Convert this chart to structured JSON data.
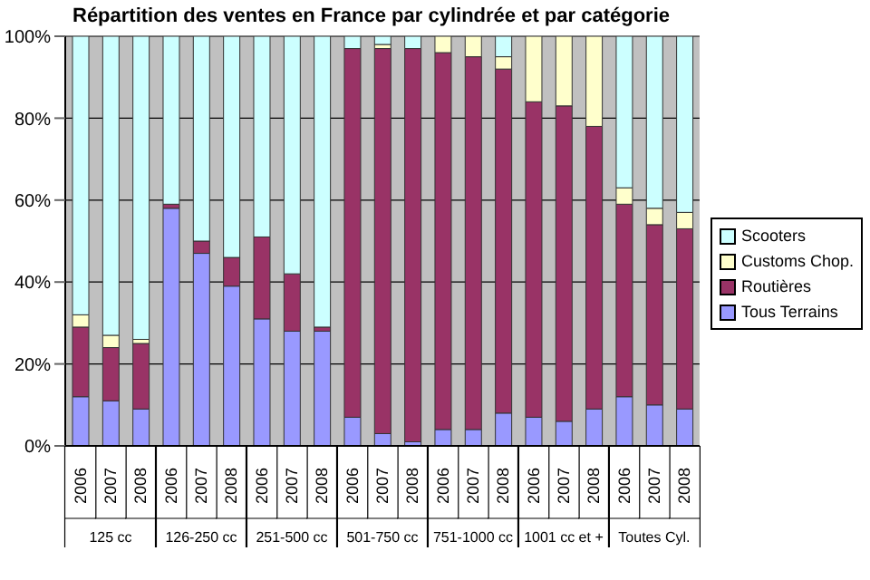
{
  "chart_data": {
    "type": "bar",
    "stacked": true,
    "title": "Répartition des ventes en France par cylindrée et par catégorie",
    "categories": [
      "2006",
      "2007",
      "2008",
      "2006",
      "2007",
      "2008",
      "2006",
      "2007",
      "2008",
      "2006",
      "2007",
      "2008",
      "2006",
      "2007",
      "2008",
      "2006",
      "2007",
      "2008",
      "2006",
      "2007",
      "2008"
    ],
    "annotations": [
      "125 cc",
      "126-250 cc",
      "251-500 cc",
      "501-750 cc",
      "751-1000 cc",
      "1001 cc et +",
      "Toutes Cyl."
    ],
    "series": [
      {
        "name": "Tous Terrains",
        "color": "#9999ff",
        "values": [
          12,
          11,
          9,
          58,
          47,
          39,
          31,
          28,
          28,
          7,
          3,
          1,
          4,
          4,
          8,
          7,
          6,
          9,
          12,
          10,
          9
        ]
      },
      {
        "name": "Routières",
        "color": "#993366",
        "values": [
          17,
          13,
          16,
          1,
          3,
          7,
          20,
          14,
          1,
          90,
          94,
          96,
          92,
          91,
          84,
          77,
          77,
          69,
          47,
          44,
          44
        ]
      },
      {
        "name": "Customs Chop.",
        "color": "#ffffcc",
        "values": [
          3,
          3,
          1,
          0,
          0,
          0,
          0,
          0,
          0,
          0,
          1,
          0,
          4,
          5,
          3,
          16,
          17,
          22,
          4,
          4,
          4
        ]
      },
      {
        "name": "Scooters",
        "color": "#ccffff",
        "values": [
          68,
          73,
          74,
          41,
          50,
          54,
          49,
          58,
          71,
          3,
          2,
          3,
          0,
          0,
          5,
          0,
          0,
          0,
          37,
          42,
          43
        ]
      }
    ],
    "ylim": [
      0,
      100
    ],
    "yticks": [
      {
        "value": 0,
        "label": "0%"
      },
      {
        "value": 20,
        "label": "20%"
      },
      {
        "value": 40,
        "label": "40%"
      },
      {
        "value": 60,
        "label": "60%"
      },
      {
        "value": 80,
        "label": "80%"
      },
      {
        "value": 100,
        "label": "100%"
      }
    ],
    "grid": "y",
    "legend": "right"
  }
}
